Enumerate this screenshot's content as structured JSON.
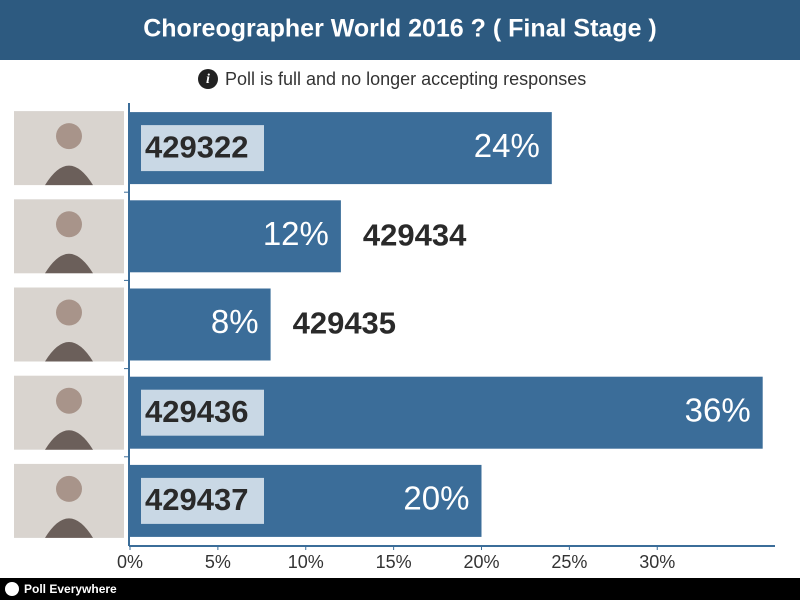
{
  "chart_data": {
    "type": "hbar",
    "title": "Choreographer World 2016 ? ( Final Stage )",
    "subtitle": "Poll is full and no longer accepting responses",
    "categories": [
      "429322",
      "429434",
      "429435",
      "429436",
      "429437"
    ],
    "values": [
      24,
      12,
      8,
      36,
      20
    ],
    "value_labels": [
      "24%",
      "12%",
      "8%",
      "36%",
      "20%"
    ],
    "color": "#3b6d99",
    "xlim": [
      0,
      36.7
    ],
    "xticks": [
      {
        "value": 0,
        "label": "0%"
      },
      {
        "value": 5,
        "label": "5%"
      },
      {
        "value": 10,
        "label": "10%"
      },
      {
        "value": 15,
        "label": "15%"
      },
      {
        "value": 20,
        "label": "20%"
      },
      {
        "value": 25,
        "label": "25%"
      },
      {
        "value": 30,
        "label": "30%"
      }
    ]
  },
  "footer": "Poll Everywhere"
}
